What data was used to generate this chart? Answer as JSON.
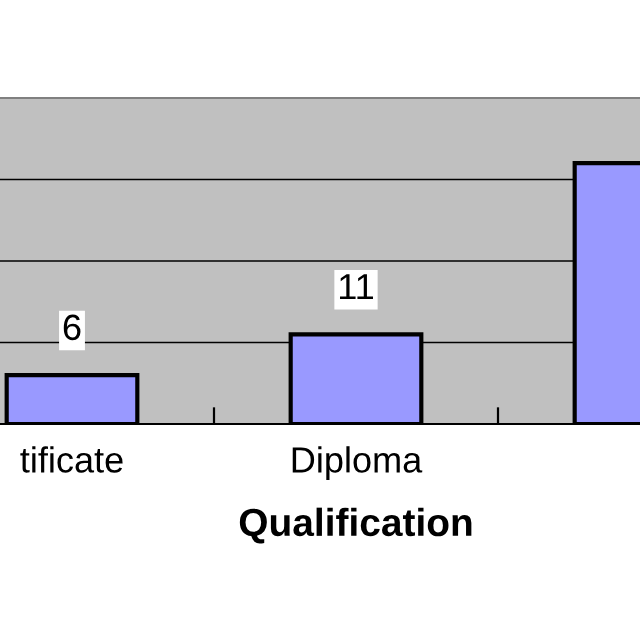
{
  "chart_data": {
    "type": "bar",
    "xlabel": "Qualification",
    "categories": [
      "tificate",
      "Diploma",
      null
    ],
    "values": [
      6,
      11,
      32
    ],
    "color": "#9999ff",
    "value_labels": [
      "6",
      "11",
      null
    ],
    "ylim": [
      0,
      40
    ],
    "yticks": [
      {
        "value": 0,
        "label": null
      },
      {
        "value": 10,
        "label": null
      },
      {
        "value": 20,
        "label": null
      },
      {
        "value": 30,
        "label": null
      },
      {
        "value": 40,
        "label": null
      }
    ],
    "tick_labels": "x",
    "grid": "y"
  }
}
